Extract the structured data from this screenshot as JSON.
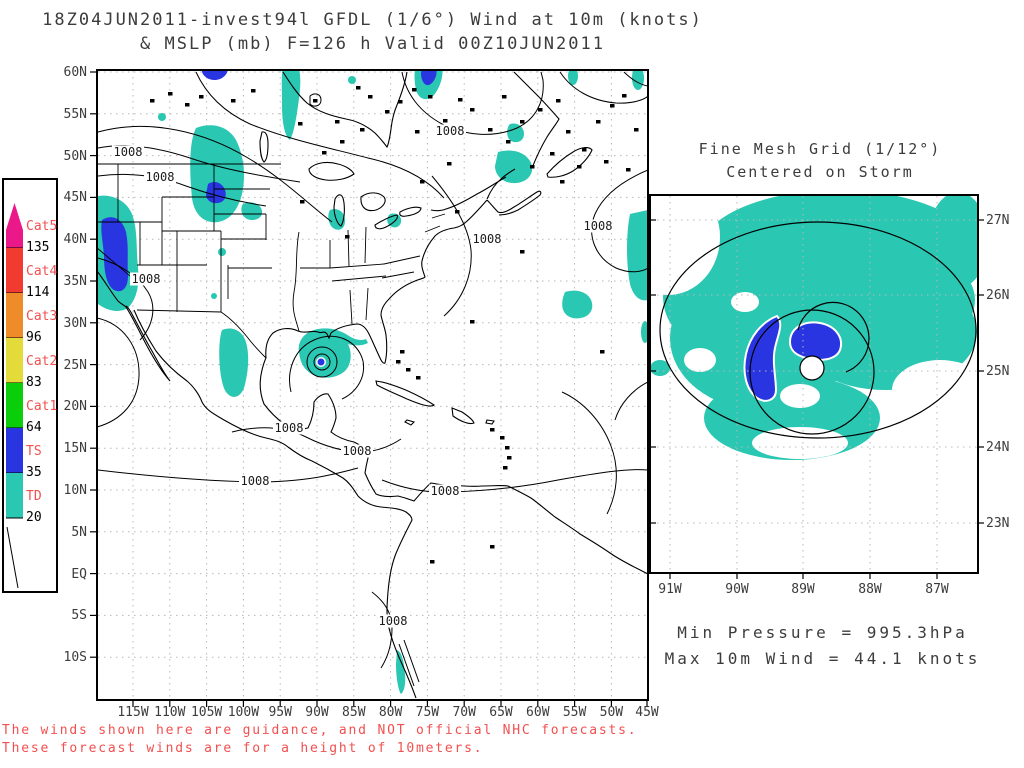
{
  "header": {
    "title_line1": "18Z04JUN2011-invest94l GFDL (1/6°) Wind at 10m (knots)",
    "title_line2": "& MSLP (mb) F=126 h Valid 00Z10JUN2011"
  },
  "legend": {
    "entries": [
      {
        "category": "Cat5",
        "threshold": "135",
        "color": "#ea1889"
      },
      {
        "category": "Cat4",
        "threshold": "114",
        "color": "#f23b30"
      },
      {
        "category": "Cat3",
        "threshold": "96",
        "color": "#ee8c2a"
      },
      {
        "category": "Cat2",
        "threshold": "83",
        "color": "#e2db39"
      },
      {
        "category": "Cat1",
        "threshold": "64",
        "color": "#0ace0a"
      },
      {
        "category": "TS",
        "threshold": "35",
        "color": "#2a35e2"
      },
      {
        "category": "TD",
        "threshold": "20",
        "color": "#2ac7b2"
      }
    ],
    "category_label_color": "#f25050",
    "threshold_label_color": "#000000"
  },
  "main_map": {
    "lat_labels": [
      "60N",
      "55N",
      "50N",
      "45N",
      "40N",
      "35N",
      "30N",
      "25N",
      "20N",
      "15N",
      "10N",
      "5N",
      "EQ",
      "5S",
      "10S"
    ],
    "lon_labels": [
      "115W",
      "110W",
      "105W",
      "100W",
      "95W",
      "90W",
      "85W",
      "80W",
      "75W",
      "70W",
      "65W",
      "60W",
      "55W",
      "50W",
      "45W"
    ],
    "isobar_label": "1008"
  },
  "inset": {
    "title_line1": "Fine Mesh Grid (1/12°)",
    "title_line2": "Centered on Storm",
    "lat_labels": [
      "27N",
      "26N",
      "25N",
      "24N",
      "23N"
    ],
    "lon_labels": [
      "91W",
      "90W",
      "89W",
      "88W",
      "87W"
    ]
  },
  "stats": {
    "min_pressure": "Min Pressure = 995.3hPa",
    "max_wind": "Max 10m Wind = 44.1 knots"
  },
  "footer": {
    "line1": "The winds shown here are guidance, and NOT official NHC forecasts.",
    "line2": "These forecast winds are for a height of 10meters.",
    "color": "#f25050"
  },
  "colors": {
    "td_cyan": "#2ac7b2",
    "ts_blue": "#2a35e2",
    "text": "#3c3c3c",
    "grid": "#b8b8b8"
  }
}
